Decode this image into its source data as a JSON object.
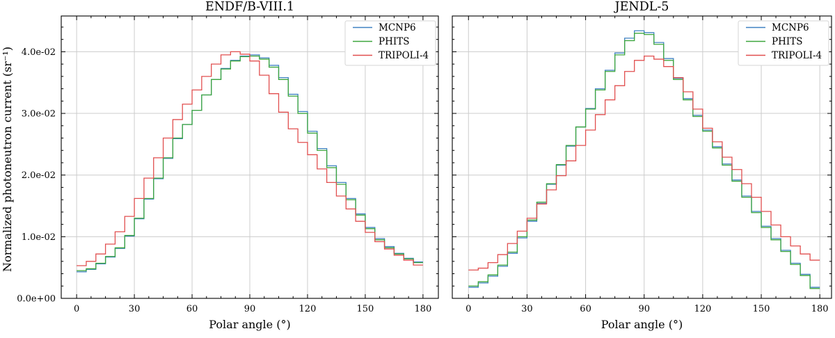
{
  "figure": {
    "background": "#ffffff",
    "axis_color": "#000000",
    "grid_color": "#cccccc",
    "legend_border_color": "#d4d4d4",
    "legend_background": "#ffffff"
  },
  "chart_data": [
    {
      "type": "step-histogram",
      "title": "ENDF/B-VIII.1",
      "xlabel": "Polar angle (°)",
      "ylabel": "Normalized photoneutron current (sr⁻¹)",
      "x_ticks": [
        0,
        30,
        60,
        90,
        120,
        150,
        180
      ],
      "x_minor_step": 7.5,
      "y_ticks": [
        0,
        1,
        2,
        3,
        4
      ],
      "y_tick_labels": [
        "0.0e+00",
        "1.0e-02",
        "2.0e-02",
        "3.0e-02",
        "4.0e-02"
      ],
      "show_y_tick_labels": true,
      "y_minor_step": 0.2,
      "xlim": [
        -8,
        188
      ],
      "ylim_e02": [
        0,
        4.58
      ],
      "grid": true,
      "legend_position": "upper right",
      "bin_width_deg": 5,
      "bin_start_deg": 0,
      "value_scale": "values are in units of 1e-02 sr^-1",
      "series": [
        {
          "name": "MCNP6",
          "color": "#3f81c1",
          "values_e02": [
            0.43,
            0.47,
            0.56,
            0.67,
            0.81,
            1.01,
            1.29,
            1.61,
            1.94,
            2.27,
            2.59,
            2.82,
            3.05,
            3.3,
            3.55,
            3.73,
            3.86,
            3.93,
            3.95,
            3.9,
            3.78,
            3.58,
            3.31,
            3.03,
            2.71,
            2.43,
            2.15,
            1.88,
            1.62,
            1.37,
            1.15,
            0.97,
            0.84,
            0.73,
            0.65,
            0.59
          ]
        },
        {
          "name": "PHITS",
          "color": "#3da63d",
          "values_e02": [
            0.45,
            0.48,
            0.57,
            0.68,
            0.82,
            1.02,
            1.3,
            1.62,
            1.95,
            2.28,
            2.6,
            2.82,
            3.05,
            3.3,
            3.55,
            3.72,
            3.85,
            3.92,
            3.93,
            3.88,
            3.75,
            3.55,
            3.28,
            3.0,
            2.68,
            2.4,
            2.12,
            1.85,
            1.6,
            1.35,
            1.13,
            0.95,
            0.82,
            0.72,
            0.64,
            0.58
          ]
        },
        {
          "name": "TRIPOLI-4",
          "color": "#e14f4f",
          "values_e02": [
            0.53,
            0.6,
            0.72,
            0.88,
            1.08,
            1.33,
            1.62,
            1.95,
            2.28,
            2.6,
            2.9,
            3.15,
            3.38,
            3.6,
            3.8,
            3.95,
            4.0,
            3.96,
            3.85,
            3.62,
            3.32,
            3.02,
            2.75,
            2.53,
            2.33,
            2.1,
            1.88,
            1.66,
            1.45,
            1.25,
            1.07,
            0.92,
            0.8,
            0.7,
            0.62,
            0.54
          ]
        }
      ]
    },
    {
      "type": "step-histogram",
      "title": "JENDL-5",
      "xlabel": "Polar angle (°)",
      "ylabel": "",
      "x_ticks": [
        0,
        30,
        60,
        90,
        120,
        150,
        180
      ],
      "x_minor_step": 7.5,
      "y_ticks": [
        0,
        1,
        2,
        3,
        4
      ],
      "y_tick_labels": [
        "0.0e+00",
        "1.0e-02",
        "2.0e-02",
        "3.0e-02",
        "4.0e-02"
      ],
      "show_y_tick_labels": false,
      "y_minor_step": 0.2,
      "xlim": [
        -8.3,
        186
      ],
      "ylim_e02": [
        0,
        4.58
      ],
      "grid": true,
      "legend_position": "upper right",
      "bin_width_deg": 5,
      "bin_start_deg": 0,
      "value_scale": "values are in units of 1e-02 sr^-1",
      "series": [
        {
          "name": "MCNP6",
          "color": "#3f81c1",
          "values_e02": [
            0.18,
            0.25,
            0.36,
            0.52,
            0.73,
            0.98,
            1.25,
            1.54,
            1.85,
            2.16,
            2.47,
            2.78,
            3.08,
            3.4,
            3.7,
            3.98,
            4.22,
            4.34,
            4.31,
            4.15,
            3.89,
            3.57,
            3.24,
            2.97,
            2.73,
            2.46,
            2.18,
            1.92,
            1.66,
            1.41,
            1.17,
            0.97,
            0.78,
            0.57,
            0.39,
            0.18
          ]
        },
        {
          "name": "PHITS",
          "color": "#3da63d",
          "values_e02": [
            0.2,
            0.27,
            0.38,
            0.54,
            0.75,
            1.0,
            1.27,
            1.56,
            1.86,
            2.17,
            2.48,
            2.78,
            3.07,
            3.38,
            3.68,
            3.95,
            4.18,
            4.3,
            4.28,
            4.12,
            3.86,
            3.55,
            3.22,
            2.95,
            2.71,
            2.44,
            2.16,
            1.9,
            1.64,
            1.39,
            1.15,
            0.95,
            0.76,
            0.55,
            0.37,
            0.16
          ]
        },
        {
          "name": "TRIPOLI-4",
          "color": "#e14f4f",
          "values_e02": [
            0.46,
            0.49,
            0.58,
            0.71,
            0.89,
            1.09,
            1.3,
            1.53,
            1.76,
            1.99,
            2.23,
            2.48,
            2.73,
            2.98,
            3.22,
            3.45,
            3.68,
            3.86,
            3.93,
            3.88,
            3.76,
            3.58,
            3.35,
            3.07,
            2.76,
            2.54,
            2.29,
            2.09,
            1.86,
            1.64,
            1.41,
            1.19,
            1.0,
            0.85,
            0.72,
            0.62
          ]
        }
      ]
    }
  ]
}
